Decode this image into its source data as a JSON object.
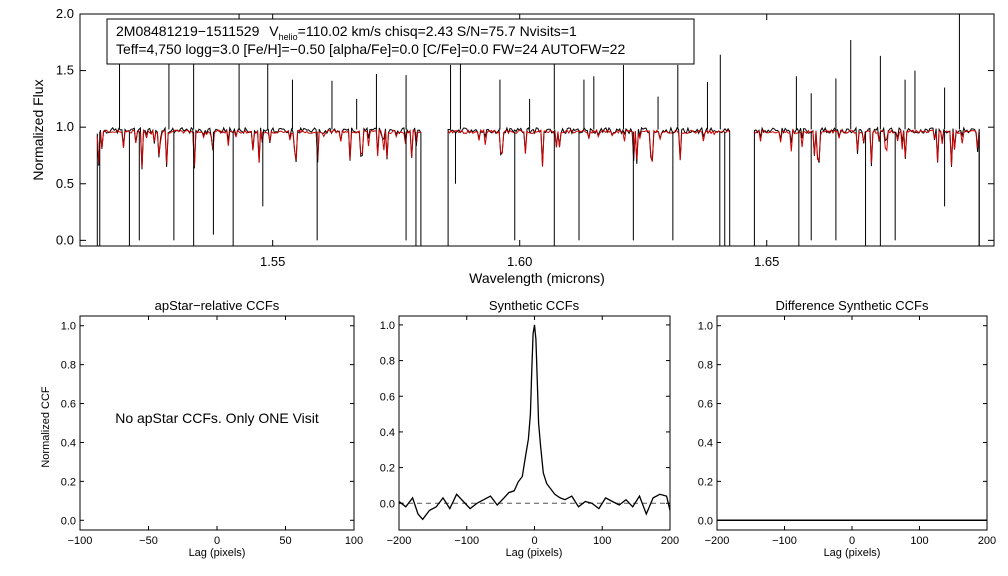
{
  "chart_data": [
    {
      "type": "line",
      "id": "spectrum",
      "xlabel": "Wavelength (microns)",
      "ylabel": "Normalized Flux",
      "xlim": [
        1.511,
        1.696
      ],
      "ylim": [
        -0.05,
        2.0
      ],
      "xticks": [
        1.55,
        1.6,
        1.65
      ],
      "xtick_labels": [
        "1.55",
        "1.60",
        "1.65"
      ],
      "yticks": [
        0.0,
        0.5,
        1.0,
        1.5,
        2.0
      ],
      "ytick_labels": [
        "0.0",
        "0.5",
        "1.0",
        "1.5",
        "2.0"
      ],
      "annotation": {
        "line1_star": "2M08481219−1511529",
        "line1_v": "V",
        "line1_vsub": "helio",
        "line1_rest": "=110.02 km/s  chisq=2.43  S/N=75.7  Nvisits=1",
        "line2": "Teff=4,750 logg=3.0 [Fe/H]=−0.50 [alpha/Fe]=0.0 [C/Fe]=0.0 FW=24 AUTOFW=22"
      },
      "series": [
        {
          "name": "observed",
          "color": "#000000"
        },
        {
          "name": "model",
          "color": "#cc0000"
        }
      ],
      "chips": [
        [
          1.5145,
          1.58
        ],
        [
          1.5855,
          1.6425
        ],
        [
          1.6475,
          1.693
        ]
      ],
      "spikes": [
        {
          "x": 1.519,
          "y": 1.63
        },
        {
          "x": 1.529,
          "y": 1.62
        },
        {
          "x": 1.534,
          "y": 1.6
        },
        {
          "x": 1.5432,
          "y": 2.0
        },
        {
          "x": 1.549,
          "y": 1.65
        },
        {
          "x": 1.554,
          "y": 1.42
        },
        {
          "x": 1.562,
          "y": 1.41
        },
        {
          "x": 1.567,
          "y": 1.25
        },
        {
          "x": 1.571,
          "y": 1.47
        },
        {
          "x": 1.577,
          "y": 1.46
        },
        {
          "x": 1.586,
          "y": 1.55
        },
        {
          "x": 1.588,
          "y": 1.62
        },
        {
          "x": 1.596,
          "y": 1.42
        },
        {
          "x": 1.602,
          "y": 1.25
        },
        {
          "x": 1.607,
          "y": 1.68
        },
        {
          "x": 1.613,
          "y": 1.42
        },
        {
          "x": 1.615,
          "y": 1.45
        },
        {
          "x": 1.621,
          "y": 1.55
        },
        {
          "x": 1.628,
          "y": 1.27
        },
        {
          "x": 1.632,
          "y": 1.55
        },
        {
          "x": 1.638,
          "y": 1.4
        },
        {
          "x": 1.6406,
          "y": 1.64
        },
        {
          "x": 1.656,
          "y": 1.45
        },
        {
          "x": 1.659,
          "y": 1.3
        },
        {
          "x": 1.664,
          "y": 1.43
        },
        {
          "x": 1.667,
          "y": 1.77
        },
        {
          "x": 1.673,
          "y": 1.63
        },
        {
          "x": 1.678,
          "y": 1.42
        },
        {
          "x": 1.68,
          "y": 1.5
        },
        {
          "x": 1.686,
          "y": 1.35
        },
        {
          "x": 1.689,
          "y": 2.0
        }
      ],
      "dips": [
        {
          "x": 1.515,
          "y": -0.05
        },
        {
          "x": 1.521,
          "y": -0.05
        },
        {
          "x": 1.523,
          "y": 0.0
        },
        {
          "x": 1.53,
          "y": 0.0
        },
        {
          "x": 1.534,
          "y": -0.05
        },
        {
          "x": 1.538,
          "y": 0.05
        },
        {
          "x": 1.542,
          "y": -0.05
        },
        {
          "x": 1.548,
          "y": 0.3
        },
        {
          "x": 1.559,
          "y": 0.0
        },
        {
          "x": 1.577,
          "y": 0.0
        },
        {
          "x": 1.579,
          "y": -0.05
        },
        {
          "x": 1.587,
          "y": 0.5
        },
        {
          "x": 1.599,
          "y": 0.0
        },
        {
          "x": 1.607,
          "y": -0.05
        },
        {
          "x": 1.612,
          "y": 0.0
        },
        {
          "x": 1.623,
          "y": 0.0
        },
        {
          "x": 1.631,
          "y": 0.0
        },
        {
          "x": 1.6405,
          "y": -0.05
        },
        {
          "x": 1.6415,
          "y": -0.05
        },
        {
          "x": 1.6565,
          "y": -0.05
        },
        {
          "x": 1.659,
          "y": 0.0
        },
        {
          "x": 1.664,
          "y": 0.0
        },
        {
          "x": 1.67,
          "y": -0.05
        },
        {
          "x": 1.673,
          "y": -0.05
        },
        {
          "x": 1.676,
          "y": 0.0
        },
        {
          "x": 1.686,
          "y": 0.3
        },
        {
          "x": 1.693,
          "y": -0.05
        }
      ]
    },
    {
      "type": "line",
      "id": "apstar",
      "title": "apStar−relative CCFs",
      "xlabel": "Lag (pixels)",
      "ylabel": "Normalized CCF",
      "xlim": [
        -100,
        100
      ],
      "ylim": [
        -0.05,
        1.05
      ],
      "xticks": [
        -100,
        -50,
        0,
        50,
        100
      ],
      "xtick_labels": [
        "−100",
        "−50",
        "0",
        "50",
        "100"
      ],
      "yticks": [
        0.0,
        0.2,
        0.4,
        0.6,
        0.8,
        1.0
      ],
      "ytick_labels": [
        "0.0",
        "0.2",
        "0.4",
        "0.6",
        "0.8",
        "1.0"
      ],
      "message": "No apStar CCFs.  Only ONE Visit"
    },
    {
      "type": "line",
      "id": "synthetic",
      "title": "Synthetic CCFs",
      "xlabel": "Lag (pixels)",
      "xlim": [
        -200,
        200
      ],
      "ylim": [
        -0.15,
        1.05
      ],
      "xticks": [
        -200,
        -100,
        0,
        100,
        200
      ],
      "xtick_labels": [
        "−200",
        "−100",
        "0",
        "100",
        "200"
      ],
      "yticks": [
        0.0,
        0.2,
        0.4,
        0.6,
        0.8,
        1.0
      ],
      "ytick_labels": [
        "0.0",
        "0.2",
        "0.4",
        "0.6",
        "0.8",
        "1.0"
      ],
      "zero_line": {
        "y": 0.0,
        "style": "dashed"
      },
      "x": [
        -200,
        -190,
        -180,
        -172,
        -165,
        -155,
        -145,
        -135,
        -125,
        -115,
        -105,
        -95,
        -85,
        -75,
        -65,
        -55,
        -45,
        -38,
        -30,
        -24,
        -18,
        -13,
        -9,
        -6,
        -4,
        -2,
        0,
        2,
        4,
        6,
        9,
        13,
        18,
        24,
        30,
        38,
        45,
        55,
        65,
        75,
        85,
        95,
        105,
        115,
        125,
        135,
        145,
        155,
        165,
        175,
        185,
        195,
        200
      ],
      "y": [
        0.01,
        -0.02,
        0.03,
        -0.06,
        -0.09,
        -0.04,
        -0.02,
        0.03,
        -0.03,
        0.05,
        0.01,
        -0.03,
        0.0,
        0.02,
        0.04,
        -0.01,
        0.03,
        0.06,
        0.07,
        0.12,
        0.15,
        0.27,
        0.36,
        0.5,
        0.75,
        0.95,
        1.0,
        0.92,
        0.7,
        0.45,
        0.32,
        0.17,
        0.11,
        0.08,
        0.05,
        0.03,
        0.02,
        0.04,
        -0.02,
        0.01,
        0.0,
        -0.03,
        0.03,
        0.01,
        -0.01,
        0.02,
        -0.02,
        0.04,
        -0.06,
        0.03,
        0.05,
        0.04,
        -0.04
      ]
    },
    {
      "type": "line",
      "id": "difference",
      "title": "Difference Synthetic CCFs",
      "xlabel": "Lag (pixels)",
      "xlim": [
        -200,
        200
      ],
      "ylim": [
        -0.05,
        1.05
      ],
      "xticks": [
        -200,
        -100,
        0,
        100,
        200
      ],
      "xtick_labels": [
        "−200",
        "−100",
        "0",
        "100",
        "200"
      ],
      "yticks": [
        0.0,
        0.2,
        0.4,
        0.6,
        0.8,
        1.0
      ],
      "ytick_labels": [
        "0.0",
        "0.2",
        "0.4",
        "0.6",
        "0.8",
        "1.0"
      ],
      "x": [
        -200,
        200
      ],
      "y": [
        0.0,
        0.0
      ]
    }
  ]
}
